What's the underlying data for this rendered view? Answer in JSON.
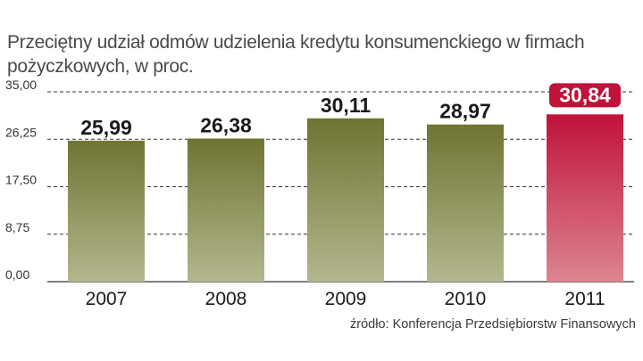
{
  "title": "Przeciętny udział odmów udzielenia kredytu konsumenckiego w firmach pożyczkowych, w proc.",
  "source": "źródło: Konferencja Przedsiębiorstw Finansowych",
  "colors": {
    "bar_top": "#6f7432",
    "bar_bottom": "#b4b78e",
    "highlight_top": "#c0123a",
    "highlight_bottom": "#dc8592",
    "grid": "#333333",
    "label_text": "#1a1a1a",
    "highlight_label_text": "#ffffff"
  },
  "chart_data": {
    "type": "bar",
    "title": "Przeciętny udział odmów udzielenia kredytu konsumenckiego w firmach pożyczkowych, w proc.",
    "xlabel": "",
    "ylabel": "",
    "categories": [
      "2007",
      "2008",
      "2009",
      "2010",
      "2011"
    ],
    "values": [
      25.99,
      26.38,
      30.11,
      28.97,
      30.84
    ],
    "value_labels": [
      "25,99",
      "26,38",
      "30,11",
      "28,97",
      "30,84"
    ],
    "highlight_index": 4,
    "ylim": [
      0,
      35
    ],
    "yticks": [
      0,
      8.75,
      17.5,
      26.25,
      35
    ],
    "ytick_labels": [
      "0,00",
      "8,75",
      "17,50",
      "26,25",
      "35,00"
    ],
    "grid": true,
    "grid_style": "dashed"
  }
}
